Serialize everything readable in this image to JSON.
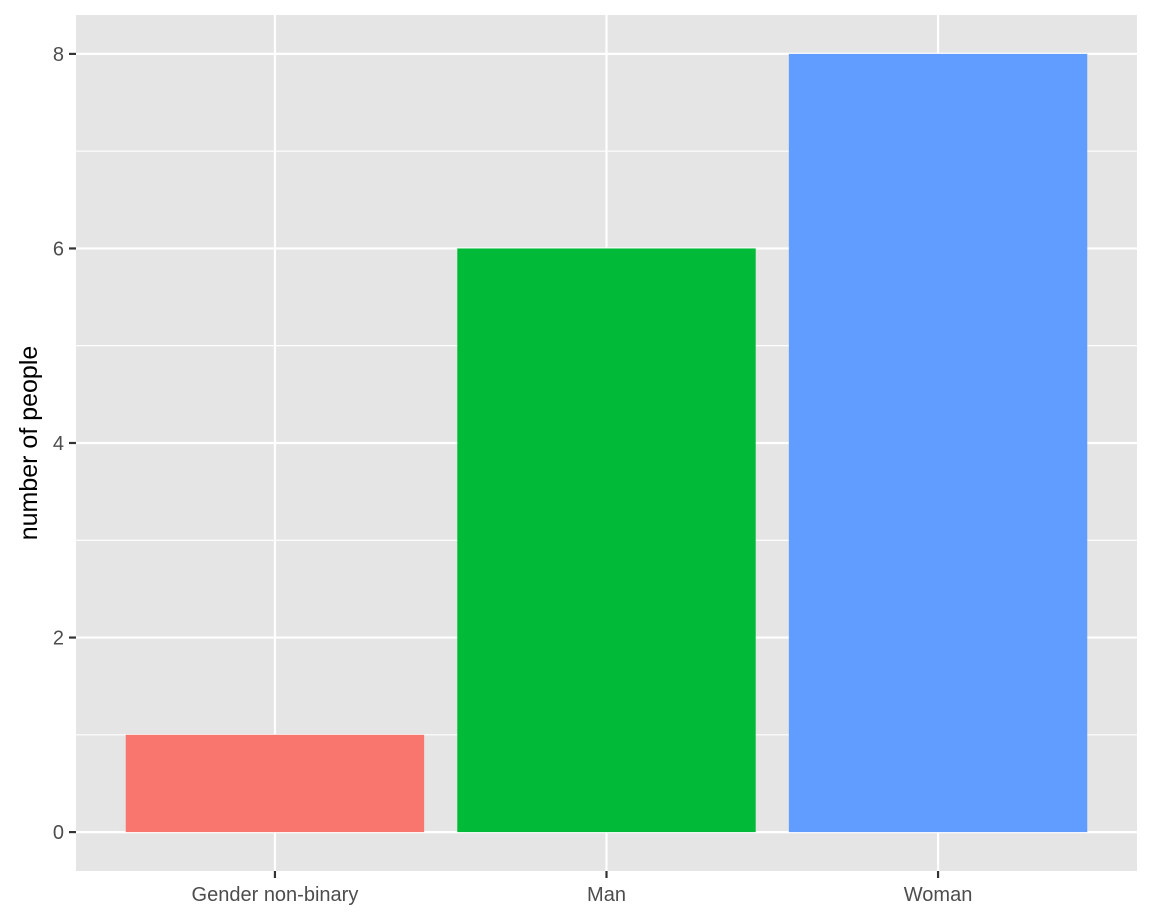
{
  "chart_data": {
    "type": "bar",
    "categories": [
      "Gender non-binary",
      "Man",
      "Woman"
    ],
    "values": [
      1,
      6,
      8
    ],
    "colors": [
      "#F8766D",
      "#00BA38",
      "#619CFF"
    ],
    "title": "",
    "xlabel": "",
    "ylabel": "number of people",
    "ylim": [
      -0.4,
      8.4
    ],
    "yticks": [
      0,
      2,
      4,
      6,
      8
    ],
    "ytick_labels": [
      "0",
      "2",
      "4",
      "6",
      "8"
    ],
    "grid": true,
    "panel_background": "#EBEBEB",
    "legend": "none"
  }
}
